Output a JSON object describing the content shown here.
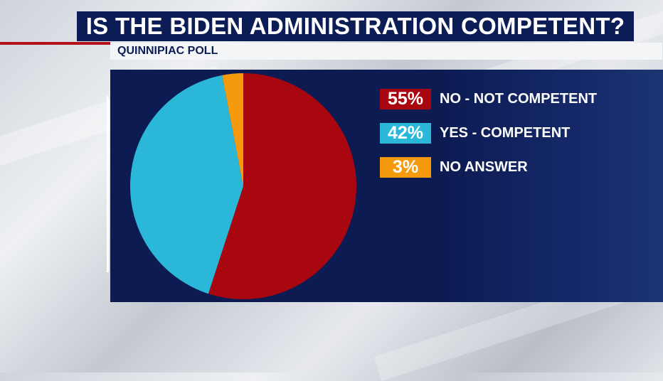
{
  "header": {
    "title": "IS THE BIDEN ADMINISTRATION COMPETENT?",
    "subtitle": "QUINNIPIAC POLL"
  },
  "chart_data": {
    "type": "pie",
    "slices": [
      {
        "label": "NO - NOT COMPETENT",
        "value": 55,
        "display": "55%",
        "color": "#a8070f"
      },
      {
        "label": "YES - COMPETENT",
        "value": 42,
        "display": "42%",
        "color": "#2bb8d8"
      },
      {
        "label": "NO ANSWER",
        "value": 3,
        "display": "3%",
        "color": "#f59a0c"
      }
    ],
    "title": "IS THE BIDEN ADMINISTRATION COMPETENT?",
    "legend_position": "right"
  },
  "colors": {
    "navy": "#0c1c55",
    "accent_red": "#b3121b"
  }
}
